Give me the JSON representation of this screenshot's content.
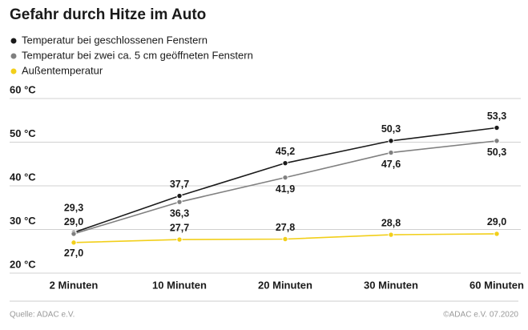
{
  "chart_data": {
    "type": "line",
    "title": "Gefahr durch Hitze im Auto",
    "categories": [
      "2 Minuten",
      "10 Minuten",
      "20 Minuten",
      "30 Minuten",
      "60 Minuten"
    ],
    "series": [
      {
        "name": "Temperatur bei geschlossenen Fenstern",
        "color": "#1a1a1a",
        "values": [
          29.3,
          37.7,
          45.2,
          50.3,
          53.3
        ],
        "value_labels": [
          "29,3",
          "37,7",
          "45,2",
          "50,3",
          "53,3"
        ]
      },
      {
        "name": "Temperatur bei zwei ca. 5 cm geöffneten Fenstern",
        "color": "#808080",
        "values": [
          29.0,
          36.3,
          41.9,
          47.6,
          50.3
        ],
        "value_labels": [
          "29,0",
          "36,3",
          "41,9",
          "47,6",
          "50,3"
        ]
      },
      {
        "name": "Außentemperatur",
        "color": "#f2cf1a",
        "values": [
          27.0,
          27.7,
          27.8,
          28.8,
          29.0
        ],
        "value_labels": [
          "27,0",
          "27,7",
          "27,8",
          "28,8",
          "29,0"
        ]
      }
    ],
    "ylim": [
      20,
      60
    ],
    "yticks": [
      {
        "value": 20,
        "label": "20 °C"
      },
      {
        "value": 30,
        "label": "30 °C"
      },
      {
        "value": 40,
        "label": "40 °C"
      },
      {
        "value": 50,
        "label": "50 °C"
      },
      {
        "value": 60,
        "label": "60 °C"
      }
    ],
    "grid": true,
    "source": "Quelle: ADAC e.V.",
    "credit": "©ADAC e.V.  07.2020"
  }
}
